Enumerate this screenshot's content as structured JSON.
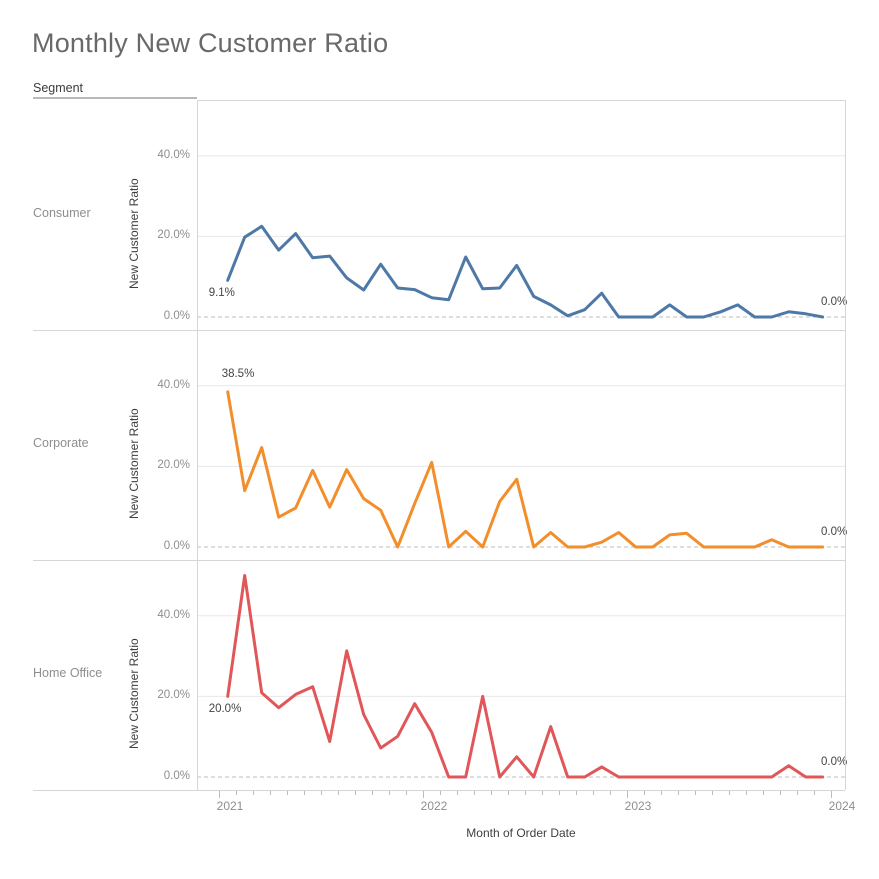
{
  "title": "Monthly New Customer Ratio",
  "row_header": "Segment",
  "chart_data": {
    "type": "line",
    "title": "Monthly New Customer Ratio",
    "layout": "trellis-rows-by-segment",
    "x_axis": {
      "label": "Month of Order Date",
      "year_labels": [
        "2021",
        "2022",
        "2023",
        "2024"
      ],
      "x_start": "2021-01",
      "x_end": "2023-12",
      "x_interval": "month",
      "points_per_series": 36
    },
    "y_axis": {
      "label": "New Customer Ratio",
      "tick_labels": [
        "0.0%",
        "20.0%",
        "40.0%"
      ],
      "tick_values": [
        0,
        20,
        40
      ],
      "ylim": [
        0,
        54
      ],
      "gridlines": "solid at 20/40, dashed at 0"
    },
    "panels": [
      {
        "segment": "Consumer",
        "color": "#4e79a7",
        "first_point_label": "9.1%",
        "last_point_label": "0.0%",
        "first_label_pos": "below",
        "values": [
          9.1,
          19.8,
          22.5,
          16.6,
          20.7,
          14.7,
          15.1,
          9.7,
          6.7,
          13.1,
          7.2,
          6.8,
          4.8,
          4.3,
          14.9,
          7.0,
          7.2,
          12.8,
          5.1,
          3.0,
          0.3,
          1.8,
          5.9,
          0.0,
          0.0,
          0.0,
          3.0,
          0.0,
          0.0,
          1.3,
          3.0,
          0.0,
          0.0,
          1.3,
          0.8,
          0.0
        ]
      },
      {
        "segment": "Corporate",
        "color": "#f28e2b",
        "first_point_label": "38.5%",
        "last_point_label": "0.0%",
        "first_label_pos": "above",
        "values": [
          38.5,
          14.0,
          24.7,
          7.4,
          9.7,
          19.0,
          9.9,
          19.2,
          12.0,
          9.1,
          0.0,
          10.8,
          21.0,
          0.0,
          3.9,
          0.0,
          11.3,
          16.8,
          0.0,
          3.6,
          0.0,
          0.0,
          1.2,
          3.6,
          0.0,
          0.0,
          3.0,
          3.4,
          0.0,
          0.0,
          0.0,
          0.0,
          1.8,
          0.0,
          0.0,
          0.0
        ]
      },
      {
        "segment": "Home Office",
        "color": "#e15759",
        "first_point_label": "20.0%",
        "last_point_label": "0.0%",
        "first_label_pos": "below",
        "values": [
          20.0,
          50.0,
          20.9,
          17.2,
          20.5,
          22.4,
          8.8,
          31.3,
          15.5,
          7.2,
          10.1,
          18.2,
          11.1,
          0.0,
          0.0,
          20.0,
          0.0,
          5.0,
          0.0,
          12.5,
          0.0,
          0.0,
          2.5,
          0.0,
          0.0,
          0.0,
          0.0,
          0.0,
          0.0,
          0.0,
          0.0,
          0.0,
          0.0,
          2.8,
          0.0,
          0.0
        ]
      }
    ],
    "style": {
      "grid_color": "#e8e8e8",
      "zero_line_color": "#bcbcbc",
      "border_color": "#d6d6d6"
    }
  }
}
